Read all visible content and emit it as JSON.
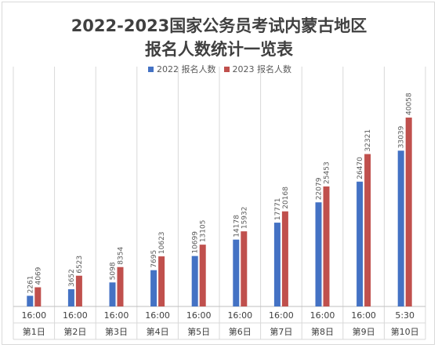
{
  "chart_data": {
    "type": "bar",
    "title_line1": "2022-2023国家公务员考试内蒙古地区",
    "title_line2": "报名人数统计一览表",
    "categories": [
      {
        "time": "16:00",
        "day": "第1日"
      },
      {
        "time": "16:00",
        "day": "第2日"
      },
      {
        "time": "16:00",
        "day": "第3日"
      },
      {
        "time": "16:00",
        "day": "第4日"
      },
      {
        "time": "16:00",
        "day": "第5日"
      },
      {
        "time": "16:00",
        "day": "第6日"
      },
      {
        "time": "16:00",
        "day": "第7日"
      },
      {
        "time": "16:00",
        "day": "第8日"
      },
      {
        "time": "16:00",
        "day": "第9日"
      },
      {
        "time": "5:30",
        "day": "第10日"
      }
    ],
    "series": [
      {
        "name": "2022 报名人数",
        "color": "#4472c4",
        "values": [
          2261,
          3652,
          5098,
          7695,
          10699,
          14178,
          17771,
          22079,
          26470,
          33039
        ]
      },
      {
        "name": "2023 报名人数",
        "color": "#c0504d",
        "values": [
          4069,
          6523,
          8354,
          10623,
          13105,
          15932,
          20168,
          25453,
          32321,
          40058
        ]
      }
    ],
    "grid": false,
    "legend_position": "top"
  }
}
